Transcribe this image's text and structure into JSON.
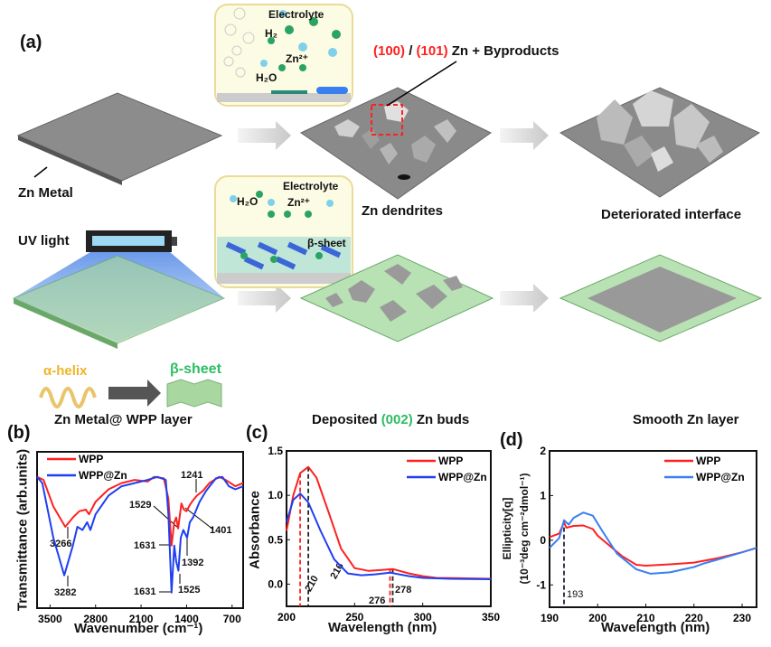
{
  "panel_a": {
    "label": "(a)",
    "inset_top": {
      "electrolyte": "Electrolyte",
      "h2": "H₂",
      "zn": "Zn²⁺",
      "h2o": "H₂O"
    },
    "inset_bottom": {
      "electrolyte": "Electrolyte",
      "h2o": "H₂O",
      "zn": "Zn²⁺",
      "beta": "β-sheet"
    },
    "byproducts": {
      "p1": "(100)",
      "sep": " / ",
      "p2": "(101)",
      "rest": " Zn + Byproducts"
    },
    "zn_metal": "Zn Metal",
    "zn_dendrites": "Zn dendrites",
    "deteriorated": "Deteriorated interface",
    "uv_light": "UV light",
    "alpha_helix": "α-helix",
    "beta_sheet": "β-sheet",
    "wpp_layer": "Zn Metal@ WPP layer",
    "deposited": {
      "pre": "Deposited ",
      "hl": "(002)",
      "post": " Zn buds"
    },
    "smooth": "Smooth Zn layer",
    "colors": {
      "red": "#ff2020",
      "green": "#2dbd63",
      "gold": "#f0b428"
    }
  },
  "chart_data": [
    {
      "panel": "(b)",
      "type": "line",
      "xlabel": "Wavenumber (cm⁻¹)",
      "ylabel": "Transmittance (arb.units)",
      "xlim": [
        3700,
        530
      ],
      "ylim": [
        0,
        1
      ],
      "xticks": [
        3500,
        2800,
        2100,
        1400,
        700
      ],
      "yticks": [],
      "legend": "top-left",
      "series": [
        {
          "name": "WPP",
          "color": "#ff2020",
          "points": [
            [
              3700,
              0.84
            ],
            [
              3600,
              0.82
            ],
            [
              3450,
              0.65
            ],
            [
              3266,
              0.52
            ],
            [
              3150,
              0.58
            ],
            [
              3050,
              0.62
            ],
            [
              2950,
              0.63
            ],
            [
              2900,
              0.6
            ],
            [
              2800,
              0.68
            ],
            [
              2600,
              0.76
            ],
            [
              2400,
              0.8
            ],
            [
              2200,
              0.82
            ],
            [
              2000,
              0.81
            ],
            [
              1900,
              0.84
            ],
            [
              1750,
              0.83
            ],
            [
              1680,
              0.7
            ],
            [
              1631,
              0.4
            ],
            [
              1590,
              0.55
            ],
            [
              1560,
              0.58
            ],
            [
              1529,
              0.51
            ],
            [
              1480,
              0.67
            ],
            [
              1440,
              0.63
            ],
            [
              1401,
              0.62
            ],
            [
              1350,
              0.66
            ],
            [
              1300,
              0.69
            ],
            [
              1241,
              0.72
            ],
            [
              1150,
              0.75
            ],
            [
              1050,
              0.8
            ],
            [
              900,
              0.84
            ],
            [
              800,
              0.82
            ],
            [
              650,
              0.78
            ],
            [
              530,
              0.8
            ]
          ]
        },
        {
          "name": "WPP@Zn",
          "color": "#1f3ff0",
          "points": [
            [
              3700,
              0.84
            ],
            [
              3620,
              0.8
            ],
            [
              3450,
              0.45
            ],
            [
              3282,
              0.21
            ],
            [
              3150,
              0.4
            ],
            [
              3080,
              0.52
            ],
            [
              3000,
              0.5
            ],
            [
              2930,
              0.55
            ],
            [
              2880,
              0.5
            ],
            [
              2800,
              0.6
            ],
            [
              2600,
              0.72
            ],
            [
              2400,
              0.78
            ],
            [
              2200,
              0.8
            ],
            [
              2000,
              0.82
            ],
            [
              1850,
              0.84
            ],
            [
              1720,
              0.82
            ],
            [
              1680,
              0.6
            ],
            [
              1631,
              0.1
            ],
            [
              1590,
              0.4
            ],
            [
              1560,
              0.3
            ],
            [
              1525,
              0.24
            ],
            [
              1490,
              0.45
            ],
            [
              1450,
              0.5
            ],
            [
              1392,
              0.45
            ],
            [
              1350,
              0.55
            ],
            [
              1300,
              0.58
            ],
            [
              1200,
              0.68
            ],
            [
              1100,
              0.75
            ],
            [
              950,
              0.83
            ],
            [
              850,
              0.84
            ],
            [
              750,
              0.78
            ],
            [
              650,
              0.76
            ],
            [
              530,
              0.78
            ]
          ]
        }
      ],
      "annotations": [
        "3266",
        "3282",
        "1631",
        "1631",
        "1529",
        "1525",
        "1392",
        "1401",
        "1241"
      ]
    },
    {
      "panel": "(c)",
      "type": "line",
      "xlabel": "Wavelength (nm)",
      "ylabel": "Absorbance",
      "xlim": [
        200,
        350
      ],
      "ylim": [
        -0.25,
        1.5
      ],
      "xticks": [
        200,
        250,
        300,
        350
      ],
      "yticks": [
        0.0,
        0.5,
        1.0,
        1.5
      ],
      "ytick_labels": [
        "0.0",
        "0.5",
        "1.0",
        "1.5"
      ],
      "legend": "top-right",
      "series": [
        {
          "name": "WPP",
          "color": "#ff2020",
          "points": [
            [
              200,
              0.6
            ],
            [
              205,
              1.0
            ],
            [
              210,
              1.25
            ],
            [
              216,
              1.32
            ],
            [
              222,
              1.2
            ],
            [
              230,
              0.85
            ],
            [
              240,
              0.4
            ],
            [
              250,
              0.18
            ],
            [
              260,
              0.15
            ],
            [
              270,
              0.16
            ],
            [
              278,
              0.17
            ],
            [
              290,
              0.12
            ],
            [
              300,
              0.09
            ],
            [
              310,
              0.07
            ],
            [
              330,
              0.065
            ],
            [
              350,
              0.06
            ]
          ]
        },
        {
          "name": "WPP@Zn",
          "color": "#1f3ff0",
          "points": [
            [
              200,
              0.7
            ],
            [
              205,
              0.95
            ],
            [
              210,
              1.02
            ],
            [
              216,
              0.92
            ],
            [
              225,
              0.6
            ],
            [
              235,
              0.28
            ],
            [
              245,
              0.12
            ],
            [
              255,
              0.1
            ],
            [
              265,
              0.11
            ],
            [
              276,
              0.13
            ],
            [
              290,
              0.09
            ],
            [
              300,
              0.07
            ],
            [
              320,
              0.06
            ],
            [
              350,
              0.055
            ]
          ]
        }
      ],
      "markers": [
        {
          "x": 210,
          "label": "210",
          "color": "#ff2020"
        },
        {
          "x": 216,
          "label": "216",
          "color": "#222"
        },
        {
          "x": 276,
          "label": "276",
          "color": "#ff2020"
        },
        {
          "x": 278,
          "label": "278",
          "color": "#222"
        }
      ]
    },
    {
      "panel": "(d)",
      "type": "line",
      "xlabel": "Wavelength (nm)",
      "ylabel": "Ellipticity[q]",
      "ylabel2": "(10⁻³deg cm⁻²dmol⁻¹)",
      "xlim": [
        190,
        233
      ],
      "ylim": [
        -1.5,
        2
      ],
      "xticks": [
        190,
        200,
        210,
        220,
        230
      ],
      "yticks": [
        -1,
        0,
        1,
        2
      ],
      "ytick_labels": [
        "-1",
        "0",
        "1",
        "2"
      ],
      "legend": "top-right",
      "series": [
        {
          "name": "WPP",
          "color": "#ff2020",
          "points": [
            [
              190,
              0.07
            ],
            [
              192,
              0.15
            ],
            [
              193,
              0.4
            ],
            [
              193.5,
              0.28
            ],
            [
              195,
              0.32
            ],
            [
              197,
              0.33
            ],
            [
              199,
              0.25
            ],
            [
              200,
              0.1
            ],
            [
              205,
              -0.35
            ],
            [
              208,
              -0.55
            ],
            [
              210,
              -0.57
            ],
            [
              215,
              -0.54
            ],
            [
              220,
              -0.5
            ],
            [
              225,
              -0.4
            ],
            [
              230,
              -0.27
            ],
            [
              233,
              -0.17
            ]
          ]
        },
        {
          "name": "WPP@Zn",
          "color": "#3a7ff0",
          "points": [
            [
              190,
              -0.17
            ],
            [
              192,
              0.05
            ],
            [
              193,
              0.45
            ],
            [
              194,
              0.35
            ],
            [
              195,
              0.5
            ],
            [
              197,
              0.62
            ],
            [
              199,
              0.55
            ],
            [
              201,
              0.2
            ],
            [
              204,
              -0.3
            ],
            [
              208,
              -0.65
            ],
            [
              211,
              -0.75
            ],
            [
              215,
              -0.72
            ],
            [
              220,
              -0.6
            ],
            [
              222,
              -0.52
            ],
            [
              225,
              -0.43
            ],
            [
              230,
              -0.27
            ],
            [
              233,
              -0.17
            ]
          ]
        }
      ],
      "markers": [
        {
          "x": 193,
          "label": "193",
          "color": "#223"
        }
      ]
    }
  ]
}
